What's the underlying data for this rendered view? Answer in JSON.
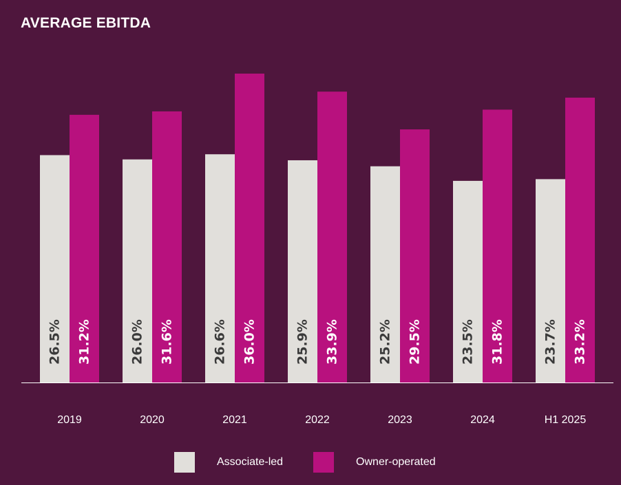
{
  "chart_data": {
    "type": "bar",
    "title": "AVERAGE EBITDA",
    "categories": [
      "2019",
      "2020",
      "2021",
      "2022",
      "2023",
      "2024",
      "H1 2025"
    ],
    "series": [
      {
        "name": "Associate-led",
        "values": [
          26.5,
          26.0,
          26.6,
          25.9,
          25.2,
          23.5,
          23.7
        ],
        "labels": [
          "26.5%",
          "26.0%",
          "26.6%",
          "25.9%",
          "25.2%",
          "23.5%",
          "23.7%"
        ]
      },
      {
        "name": "Owner-operated",
        "values": [
          31.2,
          31.6,
          36.0,
          33.9,
          29.5,
          31.8,
          33.2
        ],
        "labels": [
          "31.2%",
          "31.6%",
          "36.0%",
          "33.9%",
          "29.5%",
          "31.8%",
          "33.2%"
        ]
      }
    ],
    "ylim": [
      0,
      36.0
    ],
    "grid": false,
    "legend": "bottom"
  },
  "colors": {
    "background": "#4f163d",
    "associate": "#e1dfdb",
    "owner": "#b8117e",
    "associate_label": "#3a3a3a",
    "owner_label": "#ffffff",
    "axis": "#ffffff"
  }
}
